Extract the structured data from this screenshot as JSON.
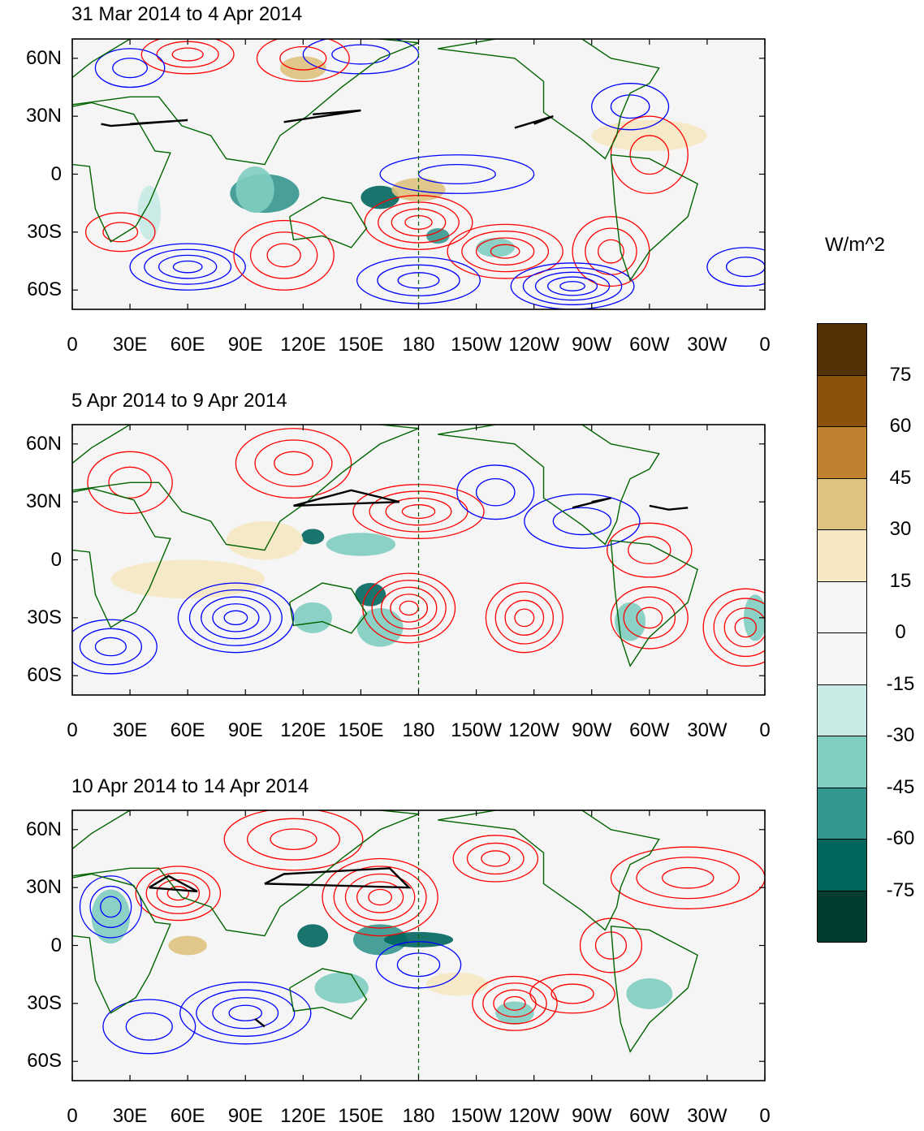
{
  "panels": [
    {
      "title": "31 Mar 2014 to 4 Apr 2014"
    },
    {
      "title": "5 Apr 2014 to 9 Apr 2014"
    },
    {
      "title": "10 Apr 2014 to 14 Apr 2014"
    }
  ],
  "lat_labels": [
    "60N",
    "30N",
    "0",
    "30S",
    "60S"
  ],
  "lon_labels": [
    "0",
    "30E",
    "60E",
    "90E",
    "120E",
    "150E",
    "180",
    "150W",
    "120W",
    "90W",
    "60W",
    "30W",
    "0"
  ],
  "colorbar": {
    "unit": "W/m^2",
    "ticks": [
      "75",
      "60",
      "45",
      "30",
      "15",
      "0",
      "-15",
      "-30",
      "-45",
      "-60",
      "-75"
    ],
    "colors": [
      "#543005",
      "#8c510a",
      "#bf812d",
      "#dfc27d",
      "#f6e8c3",
      "#f5f5f5",
      "#f5f5f5",
      "#c7eae5",
      "#80cdc1",
      "#35978f",
      "#01665e",
      "#003c30"
    ]
  },
  "colors": {
    "positive_contour": "#ff0000",
    "negative_contour": "#0000ff",
    "significance_contour": "#000000",
    "coastline": "#006400",
    "background": "#f5f5f5"
  }
}
